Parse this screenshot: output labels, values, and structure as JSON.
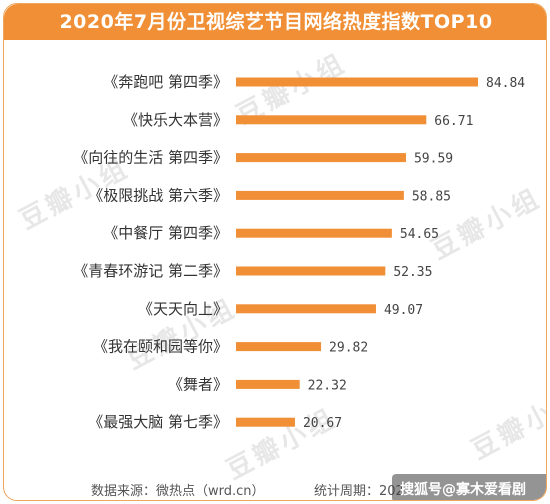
{
  "title": "2020年7月份卫视综艺节目网络热度指数TOP10",
  "watermark": "豆瓣小组",
  "footer": {
    "source": "数据来源：微热点（wrd.cn）",
    "period": "统计周期：202",
    "badge": "搜狐号@寡木爱看剧"
  },
  "colors": {
    "header": "#f08f36",
    "bar": "#f08f36",
    "frame": "#f0a55a"
  },
  "chart_data": {
    "type": "bar",
    "orientation": "horizontal",
    "categories": [
      "《奔跑吧  第四季》",
      "《快乐大本营》",
      "《向往的生活  第四季》",
      "《极限挑战  第六季》",
      "《中餐厅  第四季》",
      "《青春环游记  第二季》",
      "《天天向上》",
      "《我在颐和园等你》",
      "《舞者》",
      "《最强大脑  第七季》"
    ],
    "values": [
      84.84,
      66.71,
      59.59,
      58.85,
      54.65,
      52.35,
      49.07,
      29.82,
      22.32,
      20.67
    ],
    "value_labels": [
      "84.84",
      "66.71",
      "59.59",
      "58.85",
      "54.65",
      "52.35",
      "49.07",
      "29.82",
      "22.32",
      "20.67"
    ],
    "title": "2020年7月份卫视综艺节目网络热度指数TOP10",
    "xlabel": "",
    "ylabel": "",
    "grid": false,
    "legend": "none"
  }
}
